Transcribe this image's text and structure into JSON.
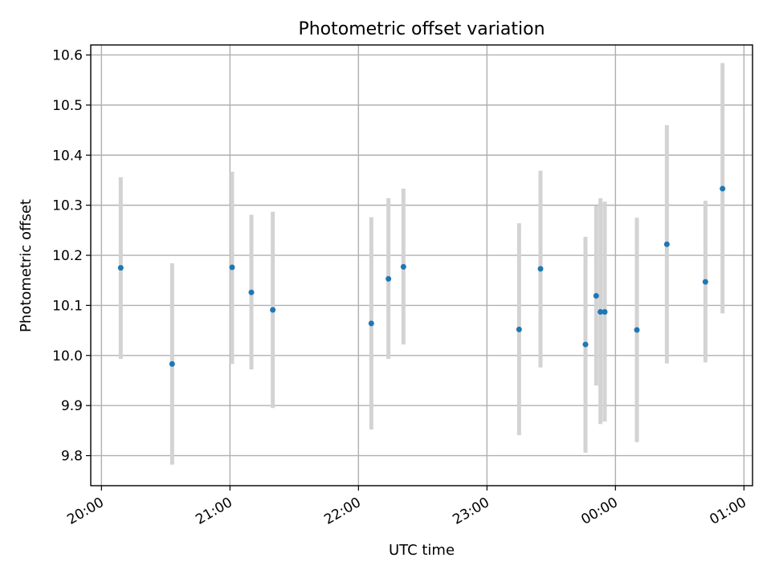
{
  "chart_data": {
    "type": "scatter",
    "title": "Photometric offset variation",
    "xlabel": "UTC time",
    "ylabel": "Photometric offset",
    "x_ticks": [
      "20:00",
      "21:00",
      "22:00",
      "23:00",
      "00:00",
      "01:00"
    ],
    "x_range": [
      "19:55",
      "01:04"
    ],
    "ylim": [
      9.74,
      10.62
    ],
    "y_ticks": [
      "9.8",
      "9.9",
      "10.0",
      "10.1",
      "10.2",
      "10.3",
      "10.4",
      "10.5",
      "10.6"
    ],
    "grid": true,
    "colors": {
      "marker": "#1f77b4",
      "errorbar": "#d3d3d3",
      "grid": "#b0b0b0"
    },
    "points": [
      {
        "x": "20:09",
        "y": 10.175,
        "ylow": 9.993,
        "yhigh": 10.356
      },
      {
        "x": "20:33",
        "y": 9.983,
        "ylow": 9.782,
        "yhigh": 10.184
      },
      {
        "x": "21:01",
        "y": 10.176,
        "ylow": 9.983,
        "yhigh": 10.367
      },
      {
        "x": "21:10",
        "y": 10.126,
        "ylow": 9.972,
        "yhigh": 10.281
      },
      {
        "x": "21:20",
        "y": 10.091,
        "ylow": 9.895,
        "yhigh": 10.287
      },
      {
        "x": "22:06",
        "y": 10.064,
        "ylow": 9.852,
        "yhigh": 10.276
      },
      {
        "x": "22:14",
        "y": 10.153,
        "ylow": 9.993,
        "yhigh": 10.314
      },
      {
        "x": "22:21",
        "y": 10.177,
        "ylow": 10.022,
        "yhigh": 10.333
      },
      {
        "x": "23:15",
        "y": 10.052,
        "ylow": 9.841,
        "yhigh": 10.264
      },
      {
        "x": "23:25",
        "y": 10.173,
        "ylow": 9.976,
        "yhigh": 10.369
      },
      {
        "x": "23:46",
        "y": 10.022,
        "ylow": 9.806,
        "yhigh": 10.237
      },
      {
        "x": "23:51",
        "y": 10.119,
        "ylow": 9.94,
        "yhigh": 10.299
      },
      {
        "x": "23:53",
        "y": 10.087,
        "ylow": 9.863,
        "yhigh": 10.314
      },
      {
        "x": "23:55",
        "y": 10.087,
        "ylow": 9.868,
        "yhigh": 10.307
      },
      {
        "x": "00:10",
        "y": 10.051,
        "ylow": 9.827,
        "yhigh": 10.275
      },
      {
        "x": "00:24",
        "y": 10.222,
        "ylow": 9.984,
        "yhigh": 10.46
      },
      {
        "x": "00:42",
        "y": 10.147,
        "ylow": 9.986,
        "yhigh": 10.309
      },
      {
        "x": "00:50",
        "y": 10.333,
        "ylow": 10.084,
        "yhigh": 10.584
      }
    ]
  }
}
